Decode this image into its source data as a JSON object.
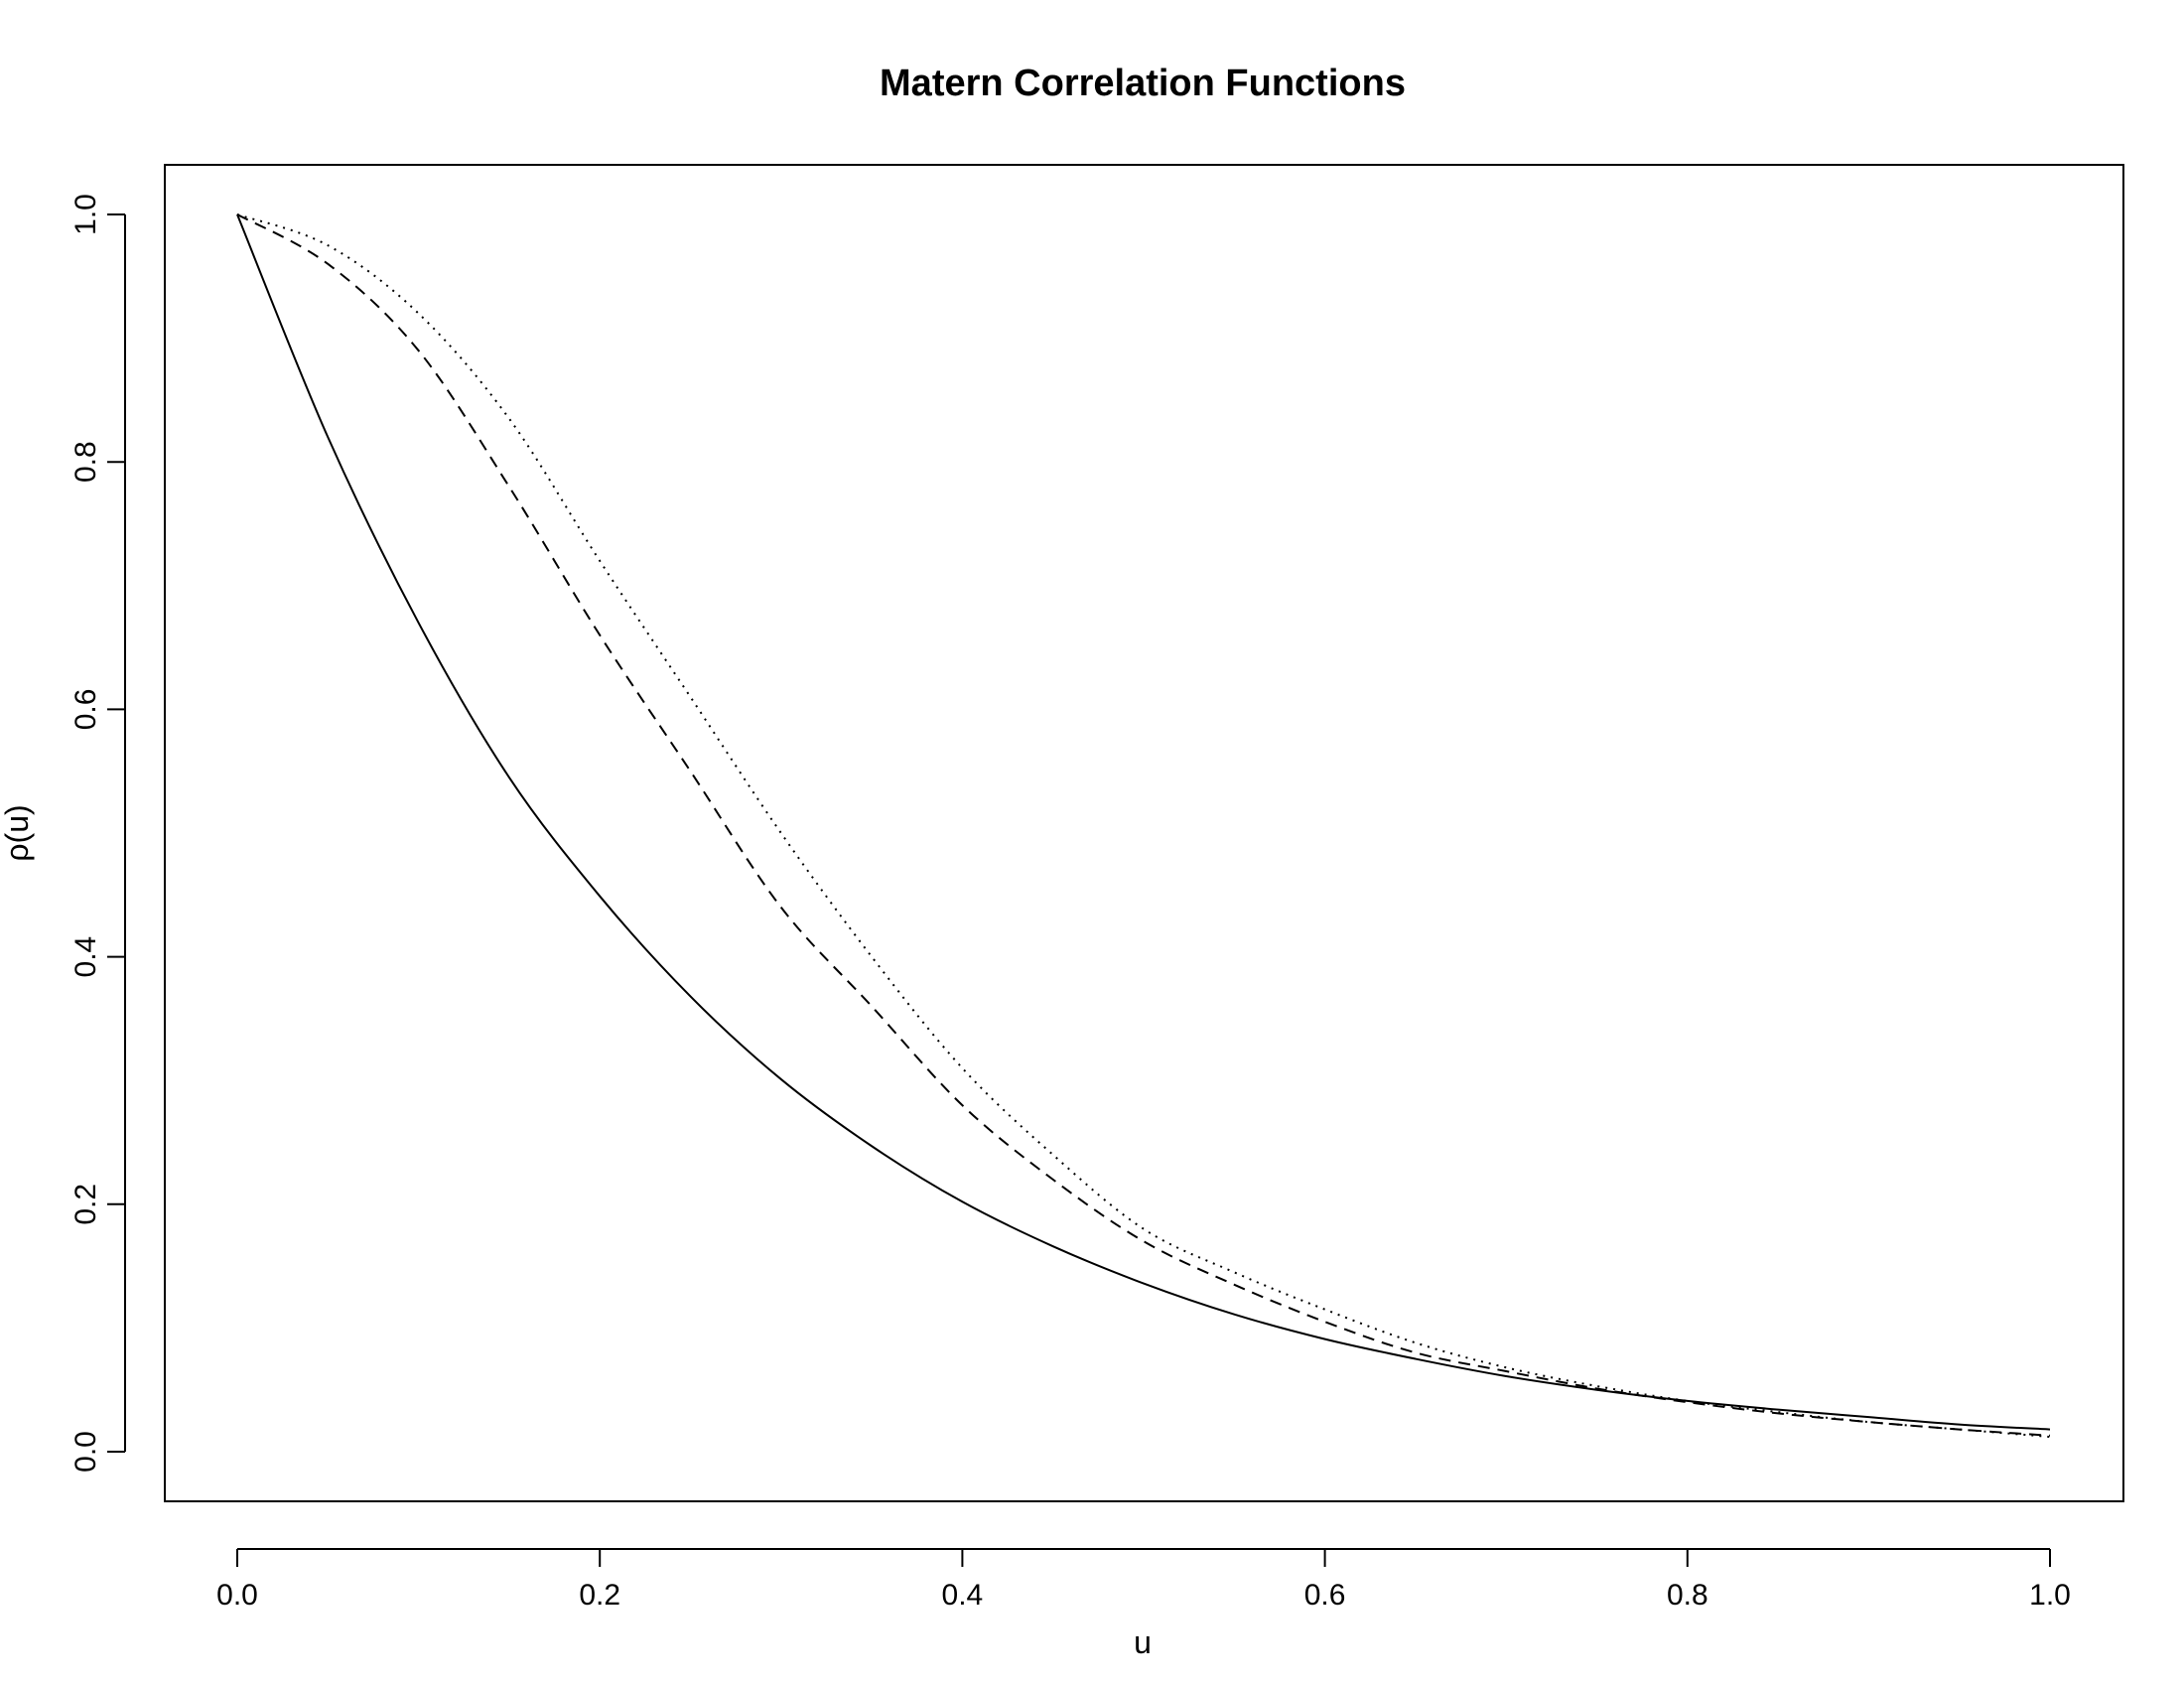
{
  "chart_data": {
    "type": "line",
    "title": "Matern Correlation Functions",
    "xlabel": "u",
    "ylabel": "ρ(u)",
    "xlim": [
      0.0,
      1.0
    ],
    "ylim": [
      0.0,
      1.0
    ],
    "x_ticks": [
      "0.0",
      "0.2",
      "0.4",
      "0.6",
      "0.8",
      "1.0"
    ],
    "y_ticks": [
      "0.0",
      "0.2",
      "0.4",
      "0.6",
      "0.8",
      "1.0"
    ],
    "grid": false,
    "legend": null,
    "x": [
      0.0,
      0.05,
      0.1,
      0.15,
      0.2,
      0.25,
      0.3,
      0.35,
      0.4,
      0.45,
      0.5,
      0.55,
      0.6,
      0.65,
      0.7,
      0.75,
      0.8,
      0.85,
      0.9,
      0.95,
      1.0
    ],
    "series": [
      {
        "line_style": "solid",
        "values": [
          1.0,
          0.82,
          0.67,
          0.545,
          0.449,
          0.368,
          0.301,
          0.247,
          0.202,
          0.166,
          0.136,
          0.111,
          0.091,
          0.075,
          0.061,
          0.05,
          0.041,
          0.034,
          0.028,
          0.022,
          0.018
        ]
      },
      {
        "line_style": "dashed",
        "values": [
          1.0,
          0.96,
          0.89,
          0.78,
          0.66,
          0.55,
          0.44,
          0.36,
          0.28,
          0.22,
          0.17,
          0.135,
          0.105,
          0.08,
          0.065,
          0.051,
          0.04,
          0.031,
          0.024,
          0.018,
          0.013
        ]
      },
      {
        "line_style": "dotted",
        "values": [
          1.0,
          0.975,
          0.92,
          0.835,
          0.72,
          0.61,
          0.5,
          0.4,
          0.31,
          0.24,
          0.18,
          0.145,
          0.115,
          0.088,
          0.068,
          0.053,
          0.041,
          0.032,
          0.024,
          0.018,
          0.012
        ]
      }
    ]
  }
}
